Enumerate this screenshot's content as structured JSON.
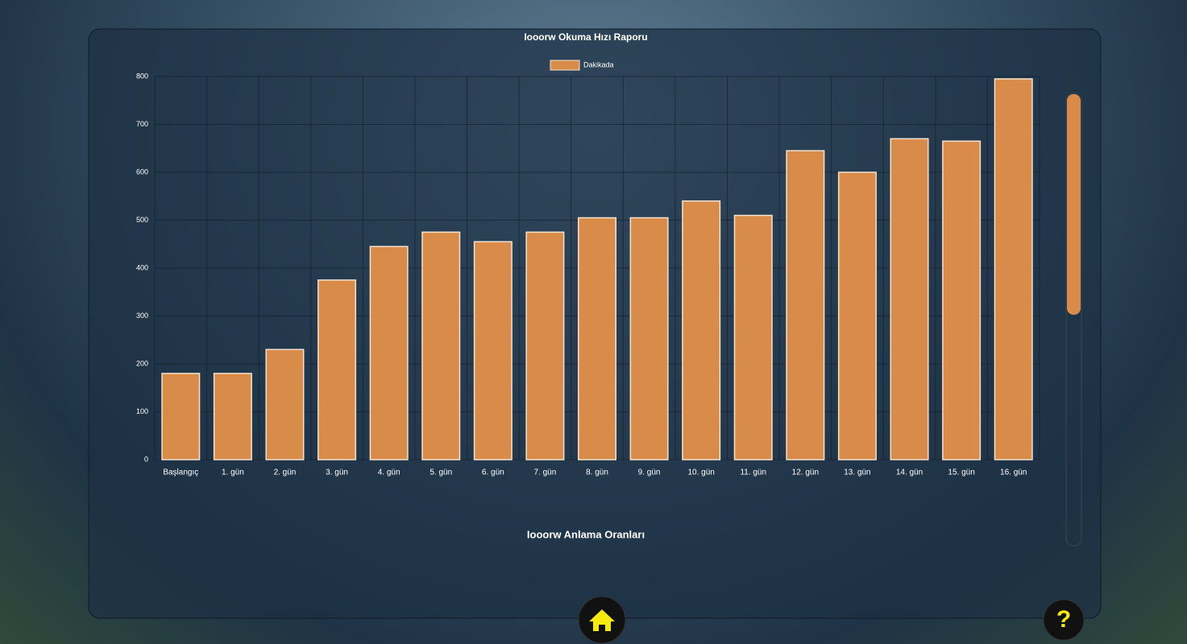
{
  "chart_data": {
    "type": "bar",
    "title": "Iooorw Okuma Hızı Raporu",
    "categories": [
      "Başlangıç",
      "1. gün",
      "2. gün",
      "3. gün",
      "4. gün",
      "5. gün",
      "6. gün",
      "7. gün",
      "8. gün",
      "9. gün",
      "10. gün",
      "11. gün",
      "12. gün",
      "13. gün",
      "14. gün",
      "15. gün",
      "16. gün"
    ],
    "series": [
      {
        "name": "Dakikada",
        "color": "#d98c4a",
        "values": [
          180,
          180,
          230,
          375,
          445,
          475,
          455,
          475,
          505,
          505,
          540,
          510,
          645,
          600,
          670,
          665,
          795
        ]
      }
    ],
    "ylim": [
      0,
      800
    ],
    "yticks": [
      0,
      100,
      200,
      300,
      400,
      500,
      600,
      700,
      800
    ],
    "grid": true,
    "legend": "top"
  },
  "section_title": "Iooorw Anlama Oranları",
  "help_button": "?"
}
